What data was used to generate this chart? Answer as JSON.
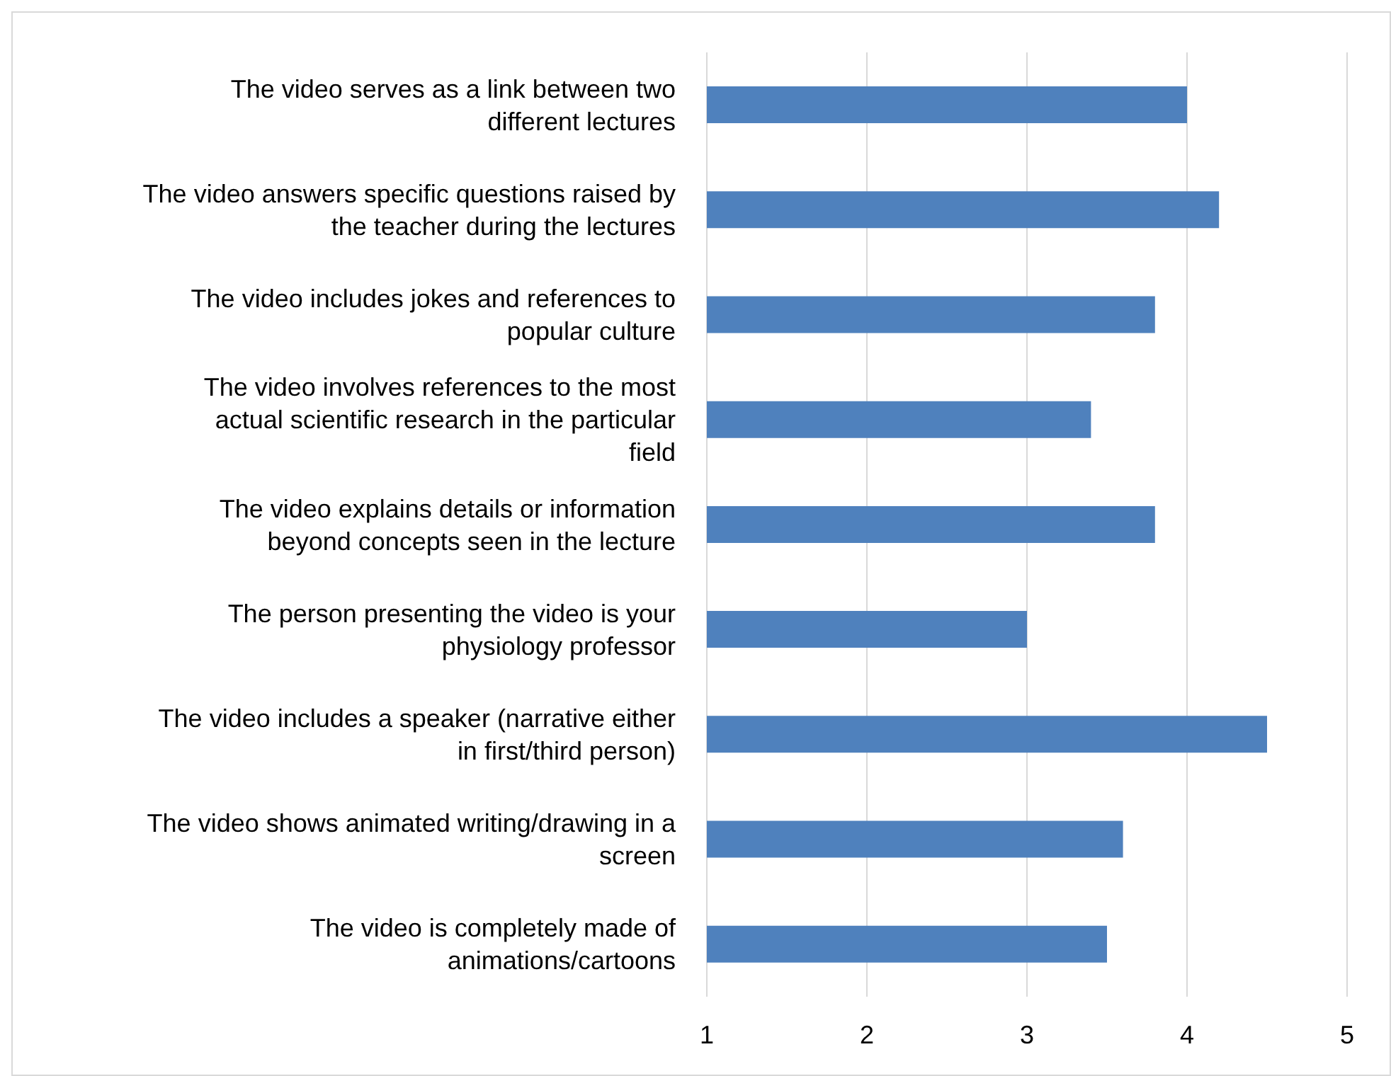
{
  "chart_data": {
    "type": "bar",
    "orientation": "horizontal",
    "categories": [
      "The video serves as a link between two different lectures",
      "The video answers specific questions raised by the teacher during the lectures",
      "The video includes jokes and references to popular culture",
      "The video involves references to the most actual scientific research in the particular field",
      "The video explains details or information beyond concepts seen in the lecture",
      "The person presenting the video is your physiology professor",
      "The video includes a speaker (narrative either in first/third person)",
      "The video shows animated writing/drawing in a screen",
      "The video is completely made of animations/cartoons"
    ],
    "values": [
      4.0,
      4.2,
      3.8,
      3.4,
      3.8,
      3.0,
      4.5,
      3.6,
      3.5
    ],
    "color": "#4f81bd",
    "xlim": [
      1,
      5
    ],
    "xticks": [
      1,
      2,
      3,
      4,
      5
    ],
    "grid": "x"
  }
}
